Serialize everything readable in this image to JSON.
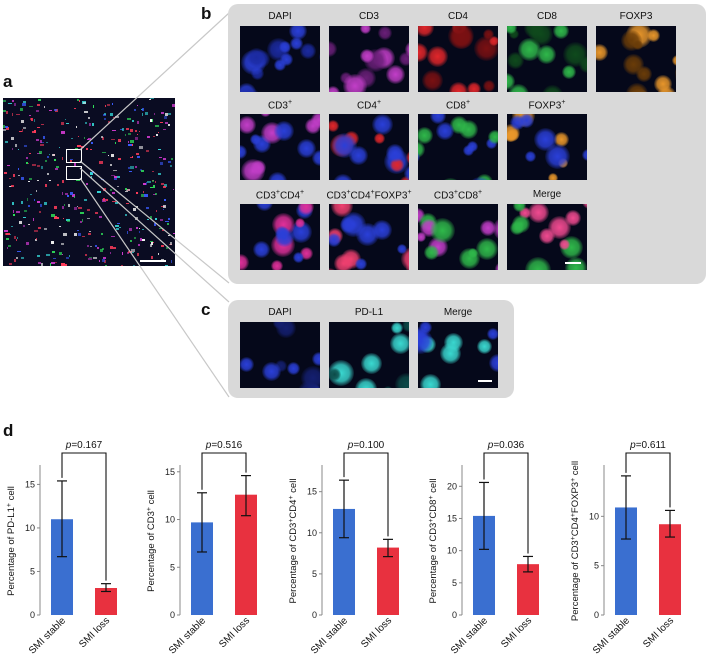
{
  "panel_labels": {
    "a": "a",
    "b": "b",
    "c": "c",
    "d": "d"
  },
  "panel_b": {
    "tiles": [
      {
        "label": "DAPI",
        "sup": "",
        "row": 0,
        "col": 0,
        "colors": [
          "#2a3fd8",
          "#1b2aa0"
        ]
      },
      {
        "label": "CD3",
        "sup": "",
        "row": 0,
        "col": 1,
        "colors": [
          "#c23ec8",
          "#6a1f78"
        ]
      },
      {
        "label": "CD4",
        "sup": "",
        "row": 0,
        "col": 2,
        "colors": [
          "#e0262a",
          "#7a1012"
        ]
      },
      {
        "label": "CD8",
        "sup": "",
        "row": 0,
        "col": 3,
        "colors": [
          "#2fb84a",
          "#0f4a1c"
        ]
      },
      {
        "label": "FOXP3",
        "sup": "",
        "row": 0,
        "col": 4,
        "colors": [
          "#e8962a",
          "#6a3c08"
        ]
      },
      {
        "label": "CD3",
        "sup": "+",
        "row": 1,
        "col": 0,
        "colors": [
          "#c23ec8",
          "#2a3fd8"
        ]
      },
      {
        "label": "CD4",
        "sup": "+",
        "row": 1,
        "col": 1,
        "colors": [
          "#e0262a",
          "#2a3fd8"
        ]
      },
      {
        "label": "CD8",
        "sup": "+",
        "row": 1,
        "col": 2,
        "colors": [
          "#2fb84a",
          "#2a3fd8"
        ]
      },
      {
        "label": "FOXP3",
        "sup": "+",
        "row": 1,
        "col": 3,
        "colors": [
          "#e8962a",
          "#2a3fd8"
        ]
      },
      {
        "label": "CD3",
        "sup": "+",
        "label2": "CD4",
        "sup2": "+",
        "row": 2,
        "col": 0,
        "colors": [
          "#e0309a",
          "#2a3fd8"
        ]
      },
      {
        "label": "CD3",
        "sup": "+",
        "label2": "CD4",
        "sup2": "+",
        "label3": "FOXP3",
        "sup3": "+",
        "row": 2,
        "col": 1,
        "colors": [
          "#f04070",
          "#2a3fd8"
        ]
      },
      {
        "label": "CD3",
        "sup": "+",
        "label2": "CD8",
        "sup2": "+",
        "row": 2,
        "col": 2,
        "colors": [
          "#c23ec8",
          "#2fb84a"
        ]
      },
      {
        "label": "Merge",
        "sup": "",
        "row": 2,
        "col": 3,
        "colors": [
          "#f04a90",
          "#2fb84a"
        ]
      }
    ]
  },
  "panel_c": {
    "tiles": [
      {
        "label": "DAPI",
        "colors": [
          "#2a3fd8",
          "#141f70"
        ]
      },
      {
        "label": "PD-L1",
        "colors": [
          "#3ad8d0",
          "#0c4a48"
        ]
      },
      {
        "label": "Merge",
        "colors": [
          "#3ad8d0",
          "#2a3fd8"
        ]
      }
    ]
  },
  "chart_data": [
    {
      "type": "bar",
      "p_label": "p",
      "p_value": "=0.167",
      "ylabel": "Percentage of PD-L1",
      "ylabel_sup": "+",
      "ylabel_suffix": " cell",
      "categories": [
        "SMI stable",
        "SMI loss"
      ],
      "values": [
        11.0,
        3.1
      ],
      "err_low": [
        6.7,
        2.7
      ],
      "err_high": [
        15.4,
        3.6
      ],
      "ylim": [
        0,
        17
      ],
      "ticks": [
        0,
        5,
        10,
        15
      ],
      "colors": [
        "#3a6fd0",
        "#e8313f"
      ]
    },
    {
      "type": "bar",
      "p_label": "p",
      "p_value": "=0.516",
      "ylabel": "Percentage of CD3",
      "ylabel_sup": "+",
      "ylabel_suffix": " cell",
      "categories": [
        "SMI stable",
        "SMI loss"
      ],
      "values": [
        9.7,
        12.6
      ],
      "err_low": [
        6.6,
        10.4
      ],
      "err_high": [
        12.8,
        14.6
      ],
      "ylim": [
        0,
        15.5
      ],
      "ticks": [
        0,
        5,
        10,
        15
      ],
      "colors": [
        "#3a6fd0",
        "#e8313f"
      ]
    },
    {
      "type": "bar",
      "p_label": "p",
      "p_value": "=0.100",
      "ylabel": "Percentage of CD3",
      "ylabel_sup": "+",
      "ylabel_mid": "CD4",
      "ylabel_sup2": "+",
      "ylabel_suffix": " cell",
      "categories": [
        "SMI stable",
        "SMI loss"
      ],
      "values": [
        12.9,
        8.2
      ],
      "err_low": [
        9.4,
        7.1
      ],
      "err_high": [
        16.4,
        9.2
      ],
      "ylim": [
        0,
        18
      ],
      "ticks": [
        0,
        5,
        10,
        15
      ],
      "colors": [
        "#3a6fd0",
        "#e8313f"
      ]
    },
    {
      "type": "bar",
      "p_label": "p",
      "p_value": "=0.036",
      "ylabel": "Percentage of CD3",
      "ylabel_sup": "+",
      "ylabel_mid": "CD8",
      "ylabel_sup2": "+",
      "ylabel_suffix": " cell",
      "categories": [
        "SMI stable",
        "SMI loss"
      ],
      "values": [
        15.4,
        7.9
      ],
      "err_low": [
        10.2,
        6.7
      ],
      "err_high": [
        20.6,
        9.1
      ],
      "ylim": [
        0,
        23
      ],
      "ticks": [
        0,
        5,
        10,
        15,
        20
      ],
      "colors": [
        "#3a6fd0",
        "#e8313f"
      ]
    },
    {
      "type": "bar",
      "p_label": "p",
      "p_value": "=0.611",
      "ylabel": "Percentage of CD3",
      "ylabel_sup": "+",
      "ylabel_mid": "CD4",
      "ylabel_sup2": "+",
      "ylabel_mid2": "FOXP3",
      "ylabel_sup3": "+",
      "ylabel_suffix": " cell",
      "categories": [
        "SMI stable",
        "SMI loss"
      ],
      "values": [
        10.9,
        9.2
      ],
      "err_low": [
        7.7,
        7.9
      ],
      "err_high": [
        14.1,
        10.6
      ],
      "ylim": [
        0,
        15
      ],
      "ticks": [
        0,
        5,
        10
      ],
      "colors": [
        "#3a6fd0",
        "#e8313f"
      ]
    }
  ]
}
